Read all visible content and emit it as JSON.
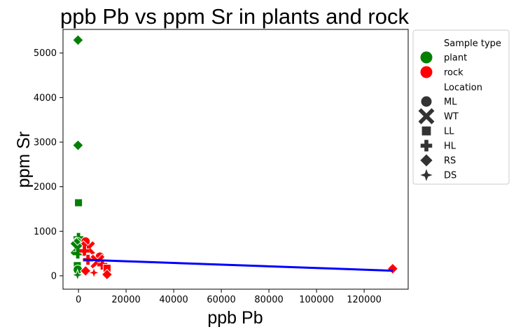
{
  "chart_data": {
    "type": "scatter",
    "title": "ppb Pb vs ppm Sr in plants and rock",
    "xlabel": "ppb Pb",
    "ylabel": "ppm Sr",
    "xlim": [
      -6500,
      138500
    ],
    "ylim": [
      -300,
      5530
    ],
    "xticks": [
      0,
      20000,
      40000,
      60000,
      80000,
      100000,
      120000
    ],
    "yticks": [
      0,
      1000,
      2000,
      3000,
      4000,
      5000
    ],
    "grid": false,
    "legend": {
      "placement": "outside-right",
      "hue_title": "Sample type",
      "hue_entries": [
        {
          "label": "plant",
          "color": "#008000"
        },
        {
          "label": "rock",
          "color": "#ff0000"
        }
      ],
      "style_title": "Location",
      "style_entries": [
        {
          "label": "ML",
          "marker": "circle"
        },
        {
          "label": "WT",
          "marker": "x"
        },
        {
          "label": "LL",
          "marker": "square"
        },
        {
          "label": "HL",
          "marker": "plus"
        },
        {
          "label": "RS",
          "marker": "diamond"
        },
        {
          "label": "DS",
          "marker": "star"
        }
      ]
    },
    "colors": {
      "plant": "#008000",
      "rock": "#ff0000",
      "trend": "#0000ff"
    },
    "series": [
      {
        "type": "plant",
        "location": "RS",
        "x": -200,
        "y": 5290
      },
      {
        "type": "plant",
        "location": "RS",
        "x": -200,
        "y": 2930
      },
      {
        "type": "plant",
        "location": "LL",
        "x": 0,
        "y": 1640
      },
      {
        "type": "plant",
        "location": "HL",
        "x": 0,
        "y": 850
      },
      {
        "type": "plant",
        "location": "ML",
        "x": -500,
        "y": 760
      },
      {
        "type": "plant",
        "location": "RS",
        "x": -800,
        "y": 740
      },
      {
        "type": "plant",
        "location": "WT",
        "x": -400,
        "y": 620
      },
      {
        "type": "plant",
        "location": "HL",
        "x": -300,
        "y": 500
      },
      {
        "type": "plant",
        "location": "LL",
        "x": -500,
        "y": 230
      },
      {
        "type": "plant",
        "location": "ML",
        "x": -300,
        "y": 140
      },
      {
        "type": "plant",
        "location": "DS",
        "x": -400,
        "y": 20
      },
      {
        "type": "rock",
        "location": "ML",
        "x": 3000,
        "y": 770
      },
      {
        "type": "rock",
        "location": "WT",
        "x": 4000,
        "y": 620
      },
      {
        "type": "rock",
        "location": "HL",
        "x": 2500,
        "y": 560
      },
      {
        "type": "rock",
        "location": "ML",
        "x": 9000,
        "y": 430
      },
      {
        "type": "rock",
        "location": "HL",
        "x": 4000,
        "y": 360
      },
      {
        "type": "rock",
        "location": "WT",
        "x": 8000,
        "y": 320
      },
      {
        "type": "rock",
        "location": "HL",
        "x": 10000,
        "y": 250
      },
      {
        "type": "rock",
        "location": "LL",
        "x": 12000,
        "y": 170
      },
      {
        "type": "rock",
        "location": "RS",
        "x": 3000,
        "y": 110
      },
      {
        "type": "rock",
        "location": "DS",
        "x": 6500,
        "y": 70
      },
      {
        "type": "rock",
        "location": "RS",
        "x": 12000,
        "y": 30
      },
      {
        "type": "rock",
        "location": "RS",
        "x": 132000,
        "y": 160
      }
    ],
    "trendline": {
      "x": [
        2000,
        132000
      ],
      "y": [
        360,
        115
      ]
    }
  }
}
